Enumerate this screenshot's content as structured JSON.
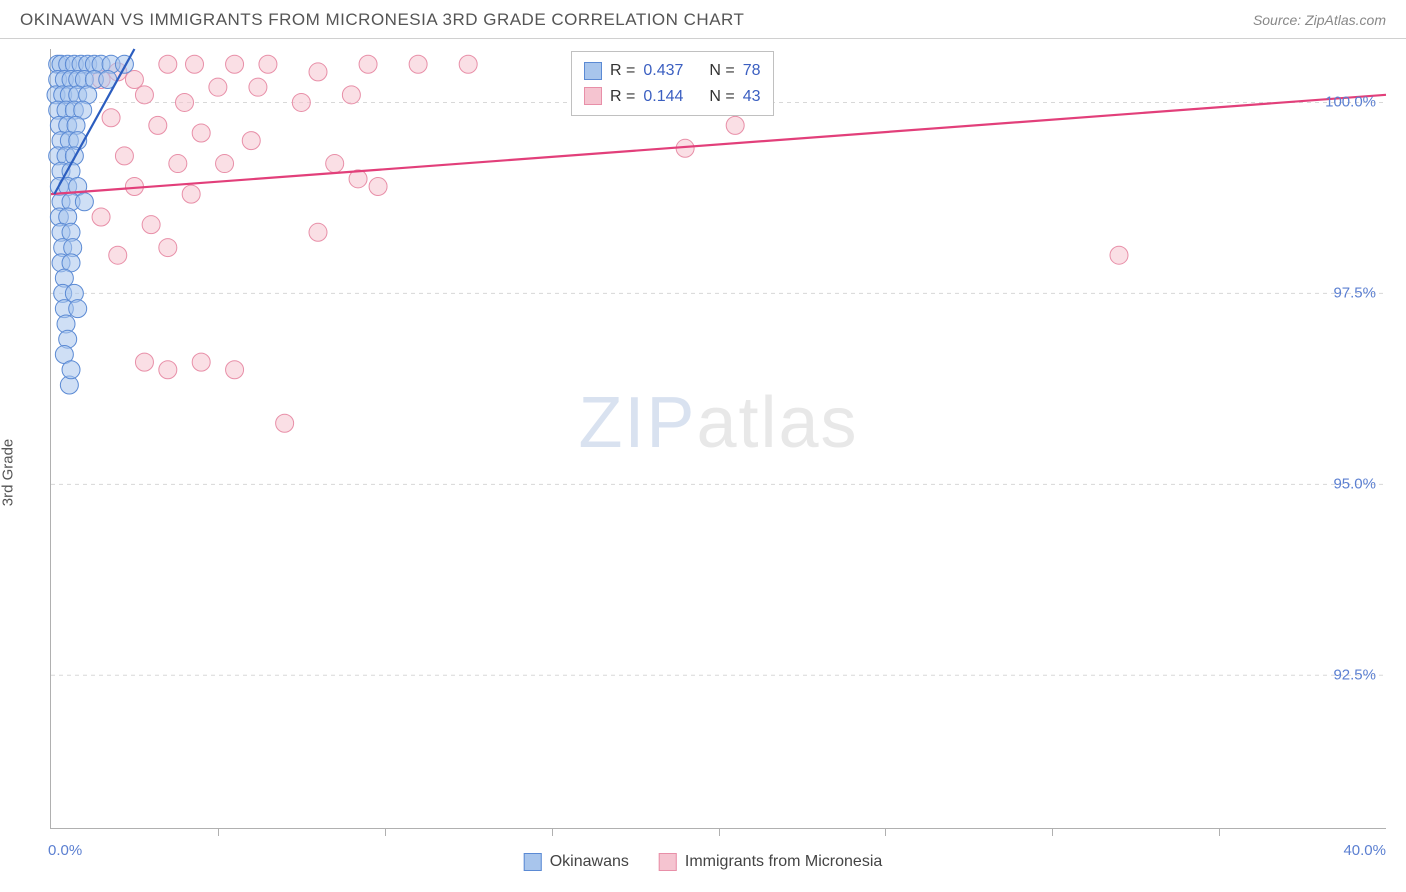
{
  "header": {
    "title": "OKINAWAN VS IMMIGRANTS FROM MICRONESIA 3RD GRADE CORRELATION CHART",
    "source_label": "Source:",
    "source_name": "ZipAtlas.com"
  },
  "axes": {
    "y_label": "3rd Grade",
    "x_min": 0.0,
    "x_max": 40.0,
    "y_min": 90.5,
    "y_max": 100.7,
    "y_ticks": [
      92.5,
      95.0,
      97.5,
      100.0
    ],
    "y_tick_labels": [
      "92.5%",
      "95.0%",
      "97.5%",
      "100.0%"
    ],
    "x_ticks": [
      0,
      5,
      10,
      15,
      20,
      25,
      30,
      35,
      40
    ],
    "x_start_label": "0.0%",
    "x_end_label": "40.0%"
  },
  "watermark": {
    "zip": "ZIP",
    "atlas": "atlas"
  },
  "series": {
    "blue": {
      "name": "Okinawans",
      "color_fill": "#a8c5ec",
      "color_stroke": "#5b8ad4",
      "color_line": "#2b5dbf",
      "r_value": "0.437",
      "n_value": "78",
      "trend": {
        "x1": 0.1,
        "y1": 98.8,
        "x2": 2.5,
        "y2": 100.7
      },
      "points": [
        [
          0.2,
          100.5
        ],
        [
          0.3,
          100.5
        ],
        [
          0.5,
          100.5
        ],
        [
          0.7,
          100.5
        ],
        [
          0.9,
          100.5
        ],
        [
          1.1,
          100.5
        ],
        [
          1.3,
          100.5
        ],
        [
          1.5,
          100.5
        ],
        [
          1.8,
          100.5
        ],
        [
          2.2,
          100.5
        ],
        [
          0.2,
          100.3
        ],
        [
          0.4,
          100.3
        ],
        [
          0.6,
          100.3
        ],
        [
          0.8,
          100.3
        ],
        [
          1.0,
          100.3
        ],
        [
          1.3,
          100.3
        ],
        [
          1.7,
          100.3
        ],
        [
          0.15,
          100.1
        ],
        [
          0.35,
          100.1
        ],
        [
          0.55,
          100.1
        ],
        [
          0.8,
          100.1
        ],
        [
          1.1,
          100.1
        ],
        [
          0.2,
          99.9
        ],
        [
          0.45,
          99.9
        ],
        [
          0.7,
          99.9
        ],
        [
          0.95,
          99.9
        ],
        [
          0.25,
          99.7
        ],
        [
          0.5,
          99.7
        ],
        [
          0.75,
          99.7
        ],
        [
          0.3,
          99.5
        ],
        [
          0.55,
          99.5
        ],
        [
          0.8,
          99.5
        ],
        [
          0.2,
          99.3
        ],
        [
          0.45,
          99.3
        ],
        [
          0.7,
          99.3
        ],
        [
          0.3,
          99.1
        ],
        [
          0.6,
          99.1
        ],
        [
          0.25,
          98.9
        ],
        [
          0.5,
          98.9
        ],
        [
          0.8,
          98.9
        ],
        [
          0.3,
          98.7
        ],
        [
          0.6,
          98.7
        ],
        [
          1.0,
          98.7
        ],
        [
          0.25,
          98.5
        ],
        [
          0.5,
          98.5
        ],
        [
          0.3,
          98.3
        ],
        [
          0.6,
          98.3
        ],
        [
          0.35,
          98.1
        ],
        [
          0.65,
          98.1
        ],
        [
          0.3,
          97.9
        ],
        [
          0.6,
          97.9
        ],
        [
          0.4,
          97.7
        ],
        [
          0.35,
          97.5
        ],
        [
          0.7,
          97.5
        ],
        [
          0.4,
          97.3
        ],
        [
          0.8,
          97.3
        ],
        [
          0.45,
          97.1
        ],
        [
          0.5,
          96.9
        ],
        [
          0.4,
          96.7
        ],
        [
          0.55,
          96.3
        ],
        [
          0.6,
          96.5
        ]
      ]
    },
    "pink": {
      "name": "Immigrants from Micronesia",
      "color_fill": "#f5c4d0",
      "color_stroke": "#e88fa8",
      "color_line": "#e23f7a",
      "r_value": "0.144",
      "n_value": "43",
      "trend": {
        "x1": 0.0,
        "y1": 98.8,
        "x2": 40.0,
        "y2": 100.1
      },
      "points": [
        [
          1.5,
          100.3
        ],
        [
          2.0,
          100.4
        ],
        [
          2.5,
          100.3
        ],
        [
          3.5,
          100.5
        ],
        [
          4.3,
          100.5
        ],
        [
          5.5,
          100.5
        ],
        [
          6.5,
          100.5
        ],
        [
          8.0,
          100.4
        ],
        [
          9.5,
          100.5
        ],
        [
          11.0,
          100.5
        ],
        [
          12.5,
          100.5
        ],
        [
          2.8,
          100.1
        ],
        [
          4.0,
          100.0
        ],
        [
          5.0,
          100.2
        ],
        [
          6.2,
          100.2
        ],
        [
          7.5,
          100.0
        ],
        [
          9.0,
          100.1
        ],
        [
          1.8,
          99.8
        ],
        [
          3.2,
          99.7
        ],
        [
          4.5,
          99.6
        ],
        [
          6.0,
          99.5
        ],
        [
          2.2,
          99.3
        ],
        [
          3.8,
          99.2
        ],
        [
          5.2,
          99.2
        ],
        [
          2.5,
          98.9
        ],
        [
          4.2,
          98.8
        ],
        [
          8.5,
          99.2
        ],
        [
          9.2,
          99.0
        ],
        [
          9.8,
          98.9
        ],
        [
          19.0,
          99.4
        ],
        [
          20.5,
          99.7
        ],
        [
          1.5,
          98.5
        ],
        [
          3.0,
          98.4
        ],
        [
          2.0,
          98.0
        ],
        [
          3.5,
          98.1
        ],
        [
          8.0,
          98.3
        ],
        [
          32.0,
          98.0
        ],
        [
          2.8,
          96.6
        ],
        [
          3.5,
          96.5
        ],
        [
          4.5,
          96.6
        ],
        [
          5.5,
          96.5
        ],
        [
          7.0,
          95.8
        ]
      ]
    }
  },
  "legend_box": {
    "r_label": "R =",
    "n_label": "N ="
  },
  "style": {
    "marker_radius": 9,
    "marker_opacity": 0.55,
    "line_width": 2.2,
    "grid_color": "#d8d8d8",
    "axis_color": "#b0b0b0",
    "background": "#ffffff",
    "title_color": "#555",
    "source_color": "#888",
    "tick_label_color": "#5b7fd1"
  }
}
